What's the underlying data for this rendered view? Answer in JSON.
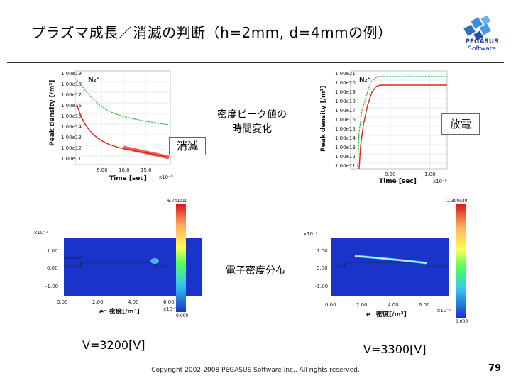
{
  "slide": {
    "title": "プラズマ成長／消滅の判断（h=2mm, d=4mmの例）",
    "copyright": "Copyright 2002-2008 PEGASUS Software Inc., All rights reserved.",
    "page_number": "79"
  },
  "logo": {
    "line1": "PEGASUS",
    "line2": "Software"
  },
  "labels": {
    "time_change": "密度ピーク値の\n時間変化",
    "density_dist": "電子密度分布",
    "extinction": "消滅",
    "discharge": "放電",
    "v_left": "V=3200[V]",
    "v_right": "V=3300[V]"
  },
  "plot_left": {
    "species": "N₂⁺",
    "ylabel": "Peak density [/m³]",
    "xlabel": "Time [sec]",
    "xunit": "x10⁻⁸",
    "yticks": [
      "1.00e19",
      "1.00e18",
      "1.00e17",
      "1.00e16",
      "1.00e15",
      "1.00e14",
      "1.00e13",
      "1.00e12",
      "1.00e11"
    ],
    "xticks": [
      "5.00",
      "10.0",
      "15.0"
    ]
  },
  "plot_right": {
    "species": "N₂⁺",
    "ylabel": "Peak density [/m³]",
    "xlabel": "Time [sec]",
    "xunit": "x10⁻⁸",
    "yticks": [
      "1.00e21",
      "1.00e20",
      "1.00e19",
      "1.00e18",
      "1.00e17",
      "1.00e16",
      "1.00e15",
      "1.00e14",
      "1.00e13",
      "1.00e12",
      "1.00e11"
    ],
    "xticks": [
      "0.50",
      "1.00"
    ]
  },
  "map_left": {
    "yunit": "x10⁻³",
    "xunit": "x10⁻³",
    "yticks": [
      "1.00",
      "0.00",
      "-1.00"
    ],
    "xticks": [
      "0.00",
      "2.00",
      "4.00",
      "6.00"
    ],
    "xlabel": "e⁻ 密度[/m³]",
    "cmax": "6.741e10",
    "cmin": "0.000"
  },
  "map_right": {
    "yunit": "x10⁻³",
    "xunit": "x10⁻³",
    "yticks": [
      "1.00",
      "0.00",
      "-1.00"
    ],
    "xticks": [
      "0.00",
      "2.00",
      "4.00",
      "6.00"
    ],
    "xlabel": "e⁻ 密度[/m³]",
    "cmax": "2.300e20",
    "cmin": "0.000"
  },
  "colors": {
    "green_curve": "#2db84a",
    "red_curve": "#e3241b",
    "field_blue": "#1a33c8"
  }
}
